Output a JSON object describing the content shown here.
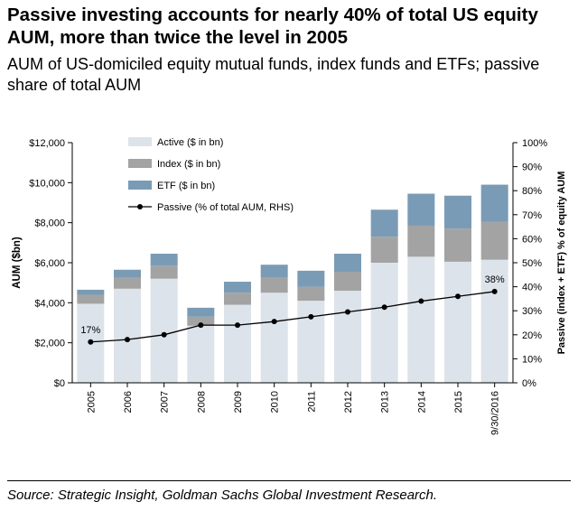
{
  "title": "Passive investing accounts for nearly 40% of total US equity AUM, more than twice the level in 2005",
  "subtitle": "AUM of US-domiciled equity mutual funds, index funds and ETFs; passive share of total AUM",
  "source": "Source: Strategic Insight, Goldman Sachs Global Investment Research.",
  "colors": {
    "active": "#dde3ea",
    "index": "#a3a3a3",
    "etf": "#7a9bb5",
    "line": "#000000"
  },
  "chart_data": {
    "type": "bar",
    "stacked": true,
    "categories": [
      "2005",
      "2006",
      "2007",
      "2008",
      "2009",
      "2010",
      "2011",
      "2012",
      "2013",
      "2014",
      "2015",
      "9/30/2016"
    ],
    "series": [
      {
        "name": "Active ($ in bn)",
        "values": [
          3950,
          4700,
          5200,
          2850,
          3900,
          4500,
          4100,
          4600,
          6000,
          6300,
          6050,
          6150
        ]
      },
      {
        "name": "Index ($ in bn)",
        "values": [
          450,
          550,
          650,
          450,
          600,
          750,
          700,
          950,
          1300,
          1550,
          1650,
          1900
        ]
      },
      {
        "name": "ETF ($ in bn)",
        "values": [
          250,
          400,
          600,
          450,
          550,
          650,
          800,
          900,
          1350,
          1600,
          1650,
          1850
        ]
      }
    ],
    "line": {
      "name": "Passive (% of total AUM, RHS)",
      "values": [
        17,
        18,
        20,
        24,
        24,
        25.5,
        27.5,
        29.5,
        31.5,
        34,
        36,
        38
      ]
    },
    "point_labels": [
      {
        "index": 0,
        "text": "17%"
      },
      {
        "index": 11,
        "text": "38%"
      }
    ],
    "ylabel": "AUM ($bn)",
    "ylabel_right": "Passive (index + ETF) % of equity AUM",
    "ylim": [
      0,
      12000
    ],
    "ylim_right": [
      0,
      100
    ],
    "yticks": [
      "$0",
      "$2,000",
      "$4,000",
      "$6,000",
      "$8,000",
      "$10,000",
      "$12,000"
    ],
    "yticks_right": [
      "0%",
      "10%",
      "20%",
      "30%",
      "40%",
      "50%",
      "60%",
      "70%",
      "80%",
      "90%",
      "100%"
    ],
    "legend": "top-left"
  }
}
